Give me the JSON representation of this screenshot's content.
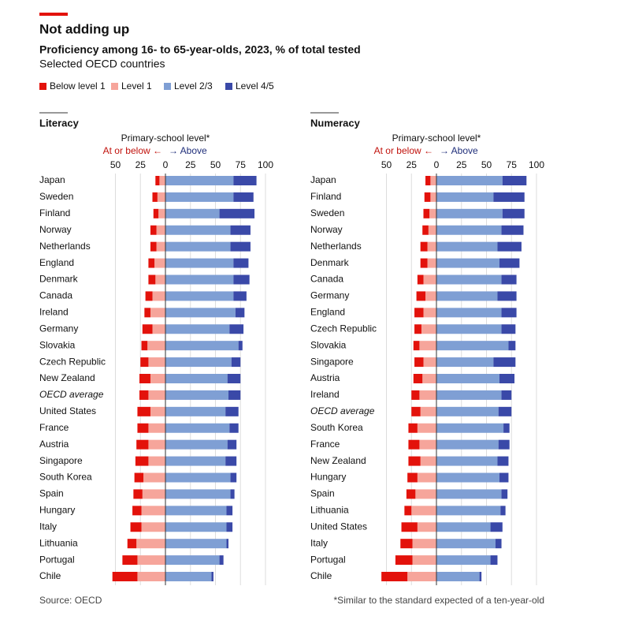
{
  "header": {
    "title": "Not adding up",
    "subtitle": "Proficiency among 16- to 65-year-olds, 2023, % of total tested",
    "note": "Selected OECD countries",
    "source": "Source: OECD",
    "footnote": "*Similar to the standard expected of a ten-year-old"
  },
  "legend": [
    {
      "name": "Below level 1",
      "color": "#e3120b"
    },
    {
      "name": "Level 1",
      "color": "#f6a59b"
    },
    {
      "name": "Level 2/3",
      "color": "#7f9fd4"
    },
    {
      "name": "Level 4/5",
      "color": "#3a49a8"
    }
  ],
  "chart_data": [
    {
      "type": "diverging_stacked_barh",
      "title": "Literacy",
      "axis_label": "Primary-school level*",
      "left_label": "At or below ←",
      "right_label": "→ Above",
      "xlim": [
        -50,
        100
      ],
      "xticks": [
        {
          "value": -50,
          "label": "50"
        },
        {
          "value": -25,
          "label": "25"
        },
        0,
        25,
        50,
        75,
        100
      ],
      "grid": true,
      "italic_index": 13,
      "categories": [
        "Japan",
        "Sweden",
        "Finland",
        "Norway",
        "Netherlands",
        "England",
        "Denmark",
        "Canada",
        "Ireland",
        "Germany",
        "Slovakia",
        "Czech Republic",
        "New Zealand",
        "OECD average",
        "United States",
        "France",
        "Austria",
        "Singapore",
        "South Korea",
        "Spain",
        "Hungary",
        "Italy",
        "Lithuania",
        "Portugal",
        "Chile"
      ],
      "series": [
        {
          "color": "#e3120b",
          "side": "left",
          "values": [
            4,
            5,
            5,
            6,
            6,
            6,
            7,
            7,
            6,
            10,
            6,
            8,
            11,
            9,
            13,
            11,
            12,
            13,
            9,
            9,
            9,
            11,
            9,
            15,
            25
          ]
        },
        {
          "color": "#f6a59b",
          "side": "left",
          "values": [
            6,
            8,
            7,
            9,
            9,
            11,
            10,
            13,
            15,
            13,
            18,
            17,
            15,
            17,
            15,
            17,
            17,
            17,
            22,
            23,
            24,
            24,
            29,
            28,
            28
          ]
        },
        {
          "color": "#7f9fd4",
          "side": "right",
          "values": [
            68,
            68,
            54,
            65,
            65,
            68,
            68,
            68,
            70,
            64,
            73,
            66,
            62,
            63,
            60,
            64,
            62,
            60,
            65,
            65,
            61,
            61,
            61,
            54,
            46
          ]
        },
        {
          "color": "#3a49a8",
          "side": "right",
          "values": [
            23,
            20,
            35,
            20,
            20,
            15,
            16,
            13,
            9,
            14,
            4,
            9,
            13,
            12,
            13,
            9,
            9,
            11,
            6,
            4,
            6,
            6,
            2,
            4,
            2
          ]
        }
      ]
    },
    {
      "type": "diverging_stacked_barh",
      "title": "Numeracy",
      "axis_label": "Primary-school level*",
      "left_label": "At or below ←",
      "right_label": "→ Above",
      "xlim": [
        -50,
        100
      ],
      "xticks": [
        {
          "value": -50,
          "label": "50"
        },
        {
          "value": -25,
          "label": "25"
        },
        0,
        25,
        50,
        75,
        100
      ],
      "grid": true,
      "italic_index": 14,
      "categories": [
        "Japan",
        "Finland",
        "Sweden",
        "Norway",
        "Netherlands",
        "Denmark",
        "Canada",
        "Germany",
        "England",
        "Czech Republic",
        "Slovakia",
        "Singapore",
        "Austria",
        "Ireland",
        "OECD average",
        "South Korea",
        "France",
        "New Zealand",
        "Hungary",
        "Spain",
        "Lithuania",
        "United States",
        "Italy",
        "Portugal",
        "Chile"
      ],
      "series": [
        {
          "color": "#e3120b",
          "side": "left",
          "values": [
            5,
            6,
            6,
            6,
            7,
            7,
            6,
            9,
            9,
            7,
            6,
            9,
            9,
            8,
            9,
            9,
            11,
            12,
            10,
            9,
            7,
            16,
            12,
            17,
            26
          ]
        },
        {
          "color": "#f6a59b",
          "side": "left",
          "values": [
            6,
            6,
            7,
            8,
            9,
            9,
            13,
            11,
            13,
            15,
            17,
            13,
            14,
            17,
            16,
            19,
            17,
            16,
            19,
            21,
            25,
            19,
            24,
            24,
            29
          ]
        },
        {
          "color": "#7f9fd4",
          "side": "right",
          "values": [
            66,
            57,
            66,
            65,
            61,
            63,
            65,
            61,
            65,
            65,
            72,
            57,
            63,
            65,
            62,
            67,
            62,
            61,
            63,
            65,
            64,
            54,
            59,
            54,
            43
          ]
        },
        {
          "color": "#3a49a8",
          "side": "right",
          "values": [
            24,
            31,
            22,
            22,
            24,
            20,
            15,
            19,
            15,
            14,
            7,
            22,
            15,
            10,
            13,
            6,
            11,
            11,
            9,
            6,
            5,
            12,
            6,
            7,
            2
          ]
        }
      ]
    }
  ]
}
